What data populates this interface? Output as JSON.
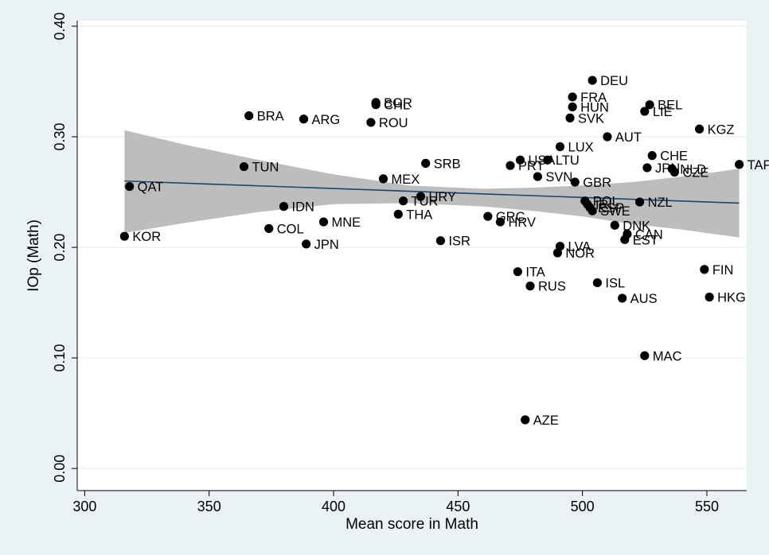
{
  "chart_data": {
    "type": "scatter",
    "title": "",
    "xlabel": "Mean score in Math",
    "ylabel": "IOp (Math)",
    "xlim": [
      297,
      566
    ],
    "ylim": [
      -0.02,
      0.405
    ],
    "xticks": [
      300,
      350,
      400,
      450,
      500,
      550
    ],
    "xtick_labels": [
      "300",
      "350",
      "400",
      "450",
      "500",
      "550"
    ],
    "yticks": [
      0.0,
      0.1,
      0.2,
      0.3,
      0.4
    ],
    "ytick_labels": [
      "0.00",
      "0.10",
      "0.20",
      "0.30",
      "0.40"
    ],
    "grid": true,
    "legend": "none",
    "colors": {
      "background": "#eaf2f3",
      "plot": "#ffffff",
      "band": "#bdbdbd",
      "fit": "#1a476f",
      "marker": "#000000"
    },
    "fit_line": {
      "x": [
        316,
        563
      ],
      "y": [
        0.26,
        0.24
      ]
    },
    "confidence_band": {
      "x": [
        316,
        340,
        370,
        400,
        430,
        460,
        480,
        500,
        520,
        540,
        563
      ],
      "lower": [
        0.213,
        0.222,
        0.232,
        0.239,
        0.24,
        0.237,
        0.233,
        0.228,
        0.221,
        0.216,
        0.209
      ],
      "upper": [
        0.306,
        0.293,
        0.279,
        0.266,
        0.256,
        0.253,
        0.254,
        0.256,
        0.259,
        0.264,
        0.271
      ]
    },
    "points": [
      {
        "label": "KOR",
        "x": 316,
        "y": 0.21
      },
      {
        "label": "QAT",
        "x": 318,
        "y": 0.255
      },
      {
        "label": "TUN",
        "x": 364,
        "y": 0.273
      },
      {
        "label": "BRA",
        "x": 366,
        "y": 0.319
      },
      {
        "label": "COL",
        "x": 374,
        "y": 0.217
      },
      {
        "label": "IDN",
        "x": 380,
        "y": 0.237
      },
      {
        "label": "ARG",
        "x": 388,
        "y": 0.316
      },
      {
        "label": "JPN",
        "x": 389,
        "y": 0.203
      },
      {
        "label": "MNE",
        "x": 396,
        "y": 0.223
      },
      {
        "label": "ROU",
        "x": 415,
        "y": 0.313
      },
      {
        "label": "BGR",
        "x": 417,
        "y": 0.331
      },
      {
        "label": "CHL",
        "x": 417,
        "y": 0.329
      },
      {
        "label": "MEX",
        "x": 420,
        "y": 0.262
      },
      {
        "label": "THA",
        "x": 426,
        "y": 0.23
      },
      {
        "label": "TUR",
        "x": 428,
        "y": 0.242
      },
      {
        "label": "URY",
        "x": 435,
        "y": 0.246
      },
      {
        "label": "SRB",
        "x": 437,
        "y": 0.276
      },
      {
        "label": "ISR",
        "x": 443,
        "y": 0.206
      },
      {
        "label": "GRC",
        "x": 462,
        "y": 0.228
      },
      {
        "label": "HRV",
        "x": 467,
        "y": 0.223
      },
      {
        "label": "PRT",
        "x": 471,
        "y": 0.274
      },
      {
        "label": "ITA",
        "x": 474,
        "y": 0.178
      },
      {
        "label": "USA",
        "x": 475,
        "y": 0.279
      },
      {
        "label": "AZE",
        "x": 477,
        "y": 0.044
      },
      {
        "label": "RUS",
        "x": 479,
        "y": 0.165
      },
      {
        "label": "SVN",
        "x": 482,
        "y": 0.264
      },
      {
        "label": "LTU",
        "x": 486,
        "y": 0.279
      },
      {
        "label": "NOR",
        "x": 490,
        "y": 0.195
      },
      {
        "label": "LUX",
        "x": 491,
        "y": 0.291
      },
      {
        "label": "LVA",
        "x": 491,
        "y": 0.201
      },
      {
        "label": "SVK",
        "x": 495,
        "y": 0.317
      },
      {
        "label": "HUN",
        "x": 496,
        "y": 0.327
      },
      {
        "label": "FRA",
        "x": 496,
        "y": 0.336
      },
      {
        "label": "GBR",
        "x": 497,
        "y": 0.259
      },
      {
        "label": "POL",
        "x": 501,
        "y": 0.242
      },
      {
        "label": "IRL",
        "x": 502,
        "y": 0.239
      },
      {
        "label": "ESP",
        "x": 503,
        "y": 0.236
      },
      {
        "label": "SWE",
        "x": 504,
        "y": 0.233
      },
      {
        "label": "DEU",
        "x": 504,
        "y": 0.351
      },
      {
        "label": "ISL",
        "x": 506,
        "y": 0.168
      },
      {
        "label": "AUT",
        "x": 510,
        "y": 0.3
      },
      {
        "label": "DNK",
        "x": 513,
        "y": 0.22
      },
      {
        "label": "AUS",
        "x": 516,
        "y": 0.154
      },
      {
        "label": "EST",
        "x": 517,
        "y": 0.207
      },
      {
        "label": "CAN",
        "x": 518,
        "y": 0.212
      },
      {
        "label": "NZL",
        "x": 523,
        "y": 0.241
      },
      {
        "label": "MAC",
        "x": 525,
        "y": 0.102
      },
      {
        "label": "LIE",
        "x": 525,
        "y": 0.323
      },
      {
        "label": "JPN",
        "x": 526,
        "y": 0.272
      },
      {
        "label": "BEL",
        "x": 527,
        "y": 0.329
      },
      {
        "label": "CHE",
        "x": 528,
        "y": 0.283
      },
      {
        "label": "NLD",
        "x": 536,
        "y": 0.271
      },
      {
        "label": "CZE",
        "x": 537,
        "y": 0.268
      },
      {
        "label": "KGZ",
        "x": 547,
        "y": 0.307
      },
      {
        "label": "FIN",
        "x": 549,
        "y": 0.18
      },
      {
        "label": "HKG",
        "x": 551,
        "y": 0.155
      },
      {
        "label": "TAP",
        "x": 563,
        "y": 0.275
      }
    ]
  }
}
